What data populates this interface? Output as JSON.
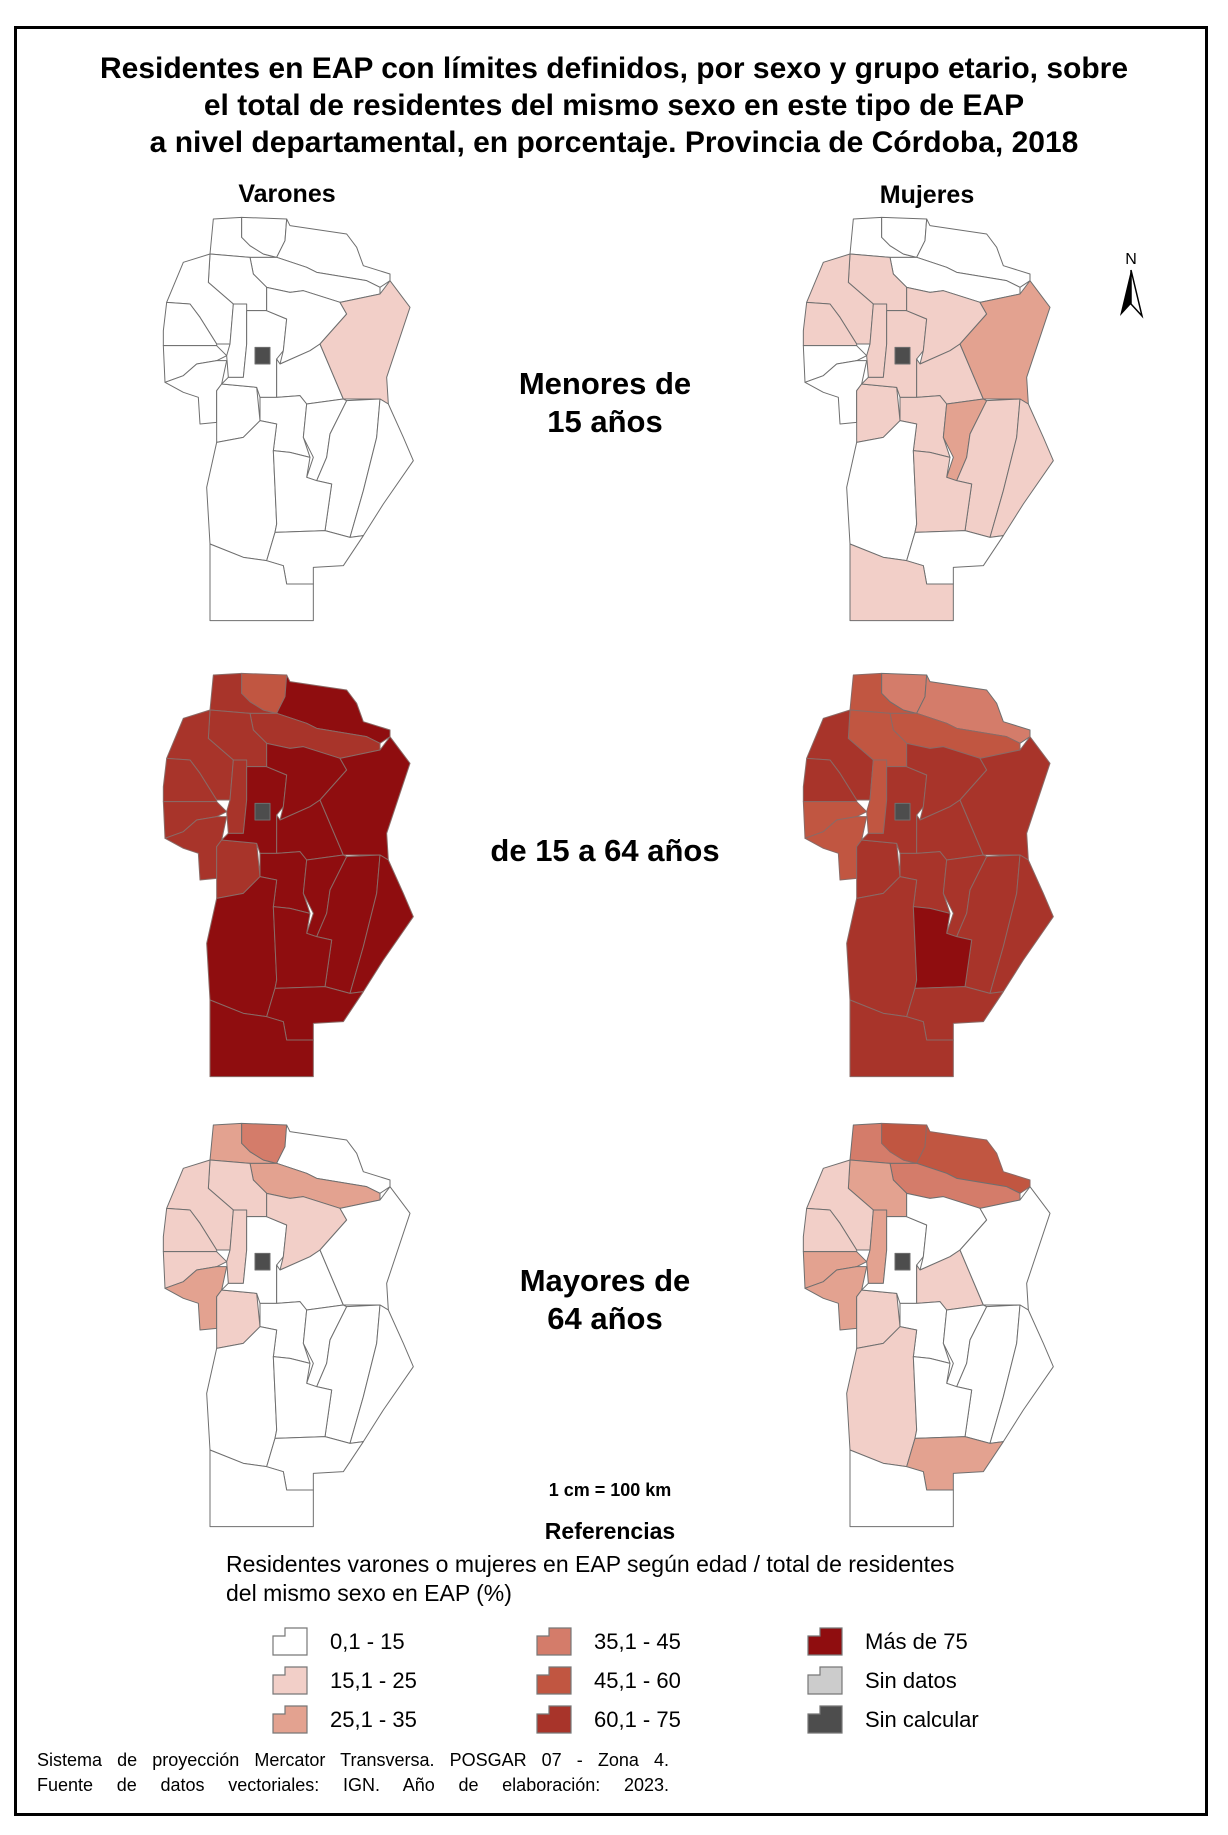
{
  "title": [
    "Residentes en EAP con límites definidos, por sexo y grupo etario, sobre",
    "el total de residentes del mismo sexo en este tipo de EAP",
    "a nivel departamental, en porcentaje. Provincia de Córdoba, 2018"
  ],
  "columns": [
    "Varones",
    "Mujeres"
  ],
  "rows": [
    [
      "Menores de",
      "15 años"
    ],
    [
      "de 15 a 64 años"
    ],
    [
      "Mayores de",
      "64 años"
    ]
  ],
  "north_label": "N",
  "scale": "1 cm = 100 km",
  "legend": {
    "title": "Referencias",
    "description": [
      "Residentes varones o mujeres en EAP según edad / total de residentes",
      "del mismo sexo en EAP (%)"
    ],
    "items": [
      {
        "label": "0,1 - 15",
        "color": "#ffffff"
      },
      {
        "label": "15,1 - 25",
        "color": "#f2cfc8"
      },
      {
        "label": "25,1 - 35",
        "color": "#e3a290"
      },
      {
        "label": "35,1 - 45",
        "color": "#d47c6a"
      },
      {
        "label": "45,1 - 60",
        "color": "#c15641"
      },
      {
        "label": "60,1 - 75",
        "color": "#a8342a"
      },
      {
        "label": "Más de 75",
        "color": "#8f0d0f"
      },
      {
        "label": "Sin datos",
        "color": "#cccccc"
      },
      {
        "label": "Sin calcular",
        "color": "#4d4d4d"
      }
    ]
  },
  "maps": [
    {
      "column": 0,
      "row": 0,
      "classes": [
        0,
        0,
        0,
        0,
        0,
        0,
        0,
        0,
        0,
        0,
        0,
        0,
        0,
        0,
        1,
        0,
        0,
        0,
        0,
        0,
        0,
        0,
        0,
        8
      ]
    },
    {
      "column": 1,
      "row": 0,
      "classes": [
        0,
        0,
        0,
        0,
        1,
        1,
        1,
        0,
        0,
        1,
        1,
        1,
        1,
        1,
        2,
        1,
        2,
        1,
        1,
        0,
        1,
        0,
        1,
        8
      ]
    },
    {
      "column": 0,
      "row": 1,
      "classes": [
        5,
        4,
        6,
        5,
        5,
        5,
        5,
        5,
        5,
        5,
        5,
        6,
        6,
        6,
        6,
        6,
        6,
        6,
        6,
        6,
        6,
        6,
        6,
        8
      ]
    },
    {
      "column": 1,
      "row": 1,
      "classes": [
        4,
        3,
        3,
        4,
        4,
        5,
        5,
        4,
        4,
        5,
        4,
        5,
        5,
        5,
        5,
        5,
        5,
        5,
        5,
        5,
        6,
        5,
        5,
        8
      ]
    },
    {
      "column": 0,
      "row": 2,
      "classes": [
        2,
        3,
        0,
        2,
        1,
        1,
        1,
        1,
        2,
        1,
        1,
        0,
        1,
        0,
        0,
        0,
        0,
        0,
        0,
        0,
        0,
        0,
        0,
        8
      ]
    },
    {
      "column": 1,
      "row": 2,
      "classes": [
        3,
        4,
        4,
        3,
        2,
        1,
        1,
        2,
        2,
        1,
        2,
        0,
        0,
        1,
        0,
        0,
        0,
        0,
        0,
        1,
        0,
        2,
        0,
        8
      ]
    }
  ],
  "footer": [
    "Sistema de proyección Mercator Transversa. POSGAR 07 - Zona 4.",
    "Fuente de datos vectoriales: IGN. Año de elaboración: 2023."
  ]
}
